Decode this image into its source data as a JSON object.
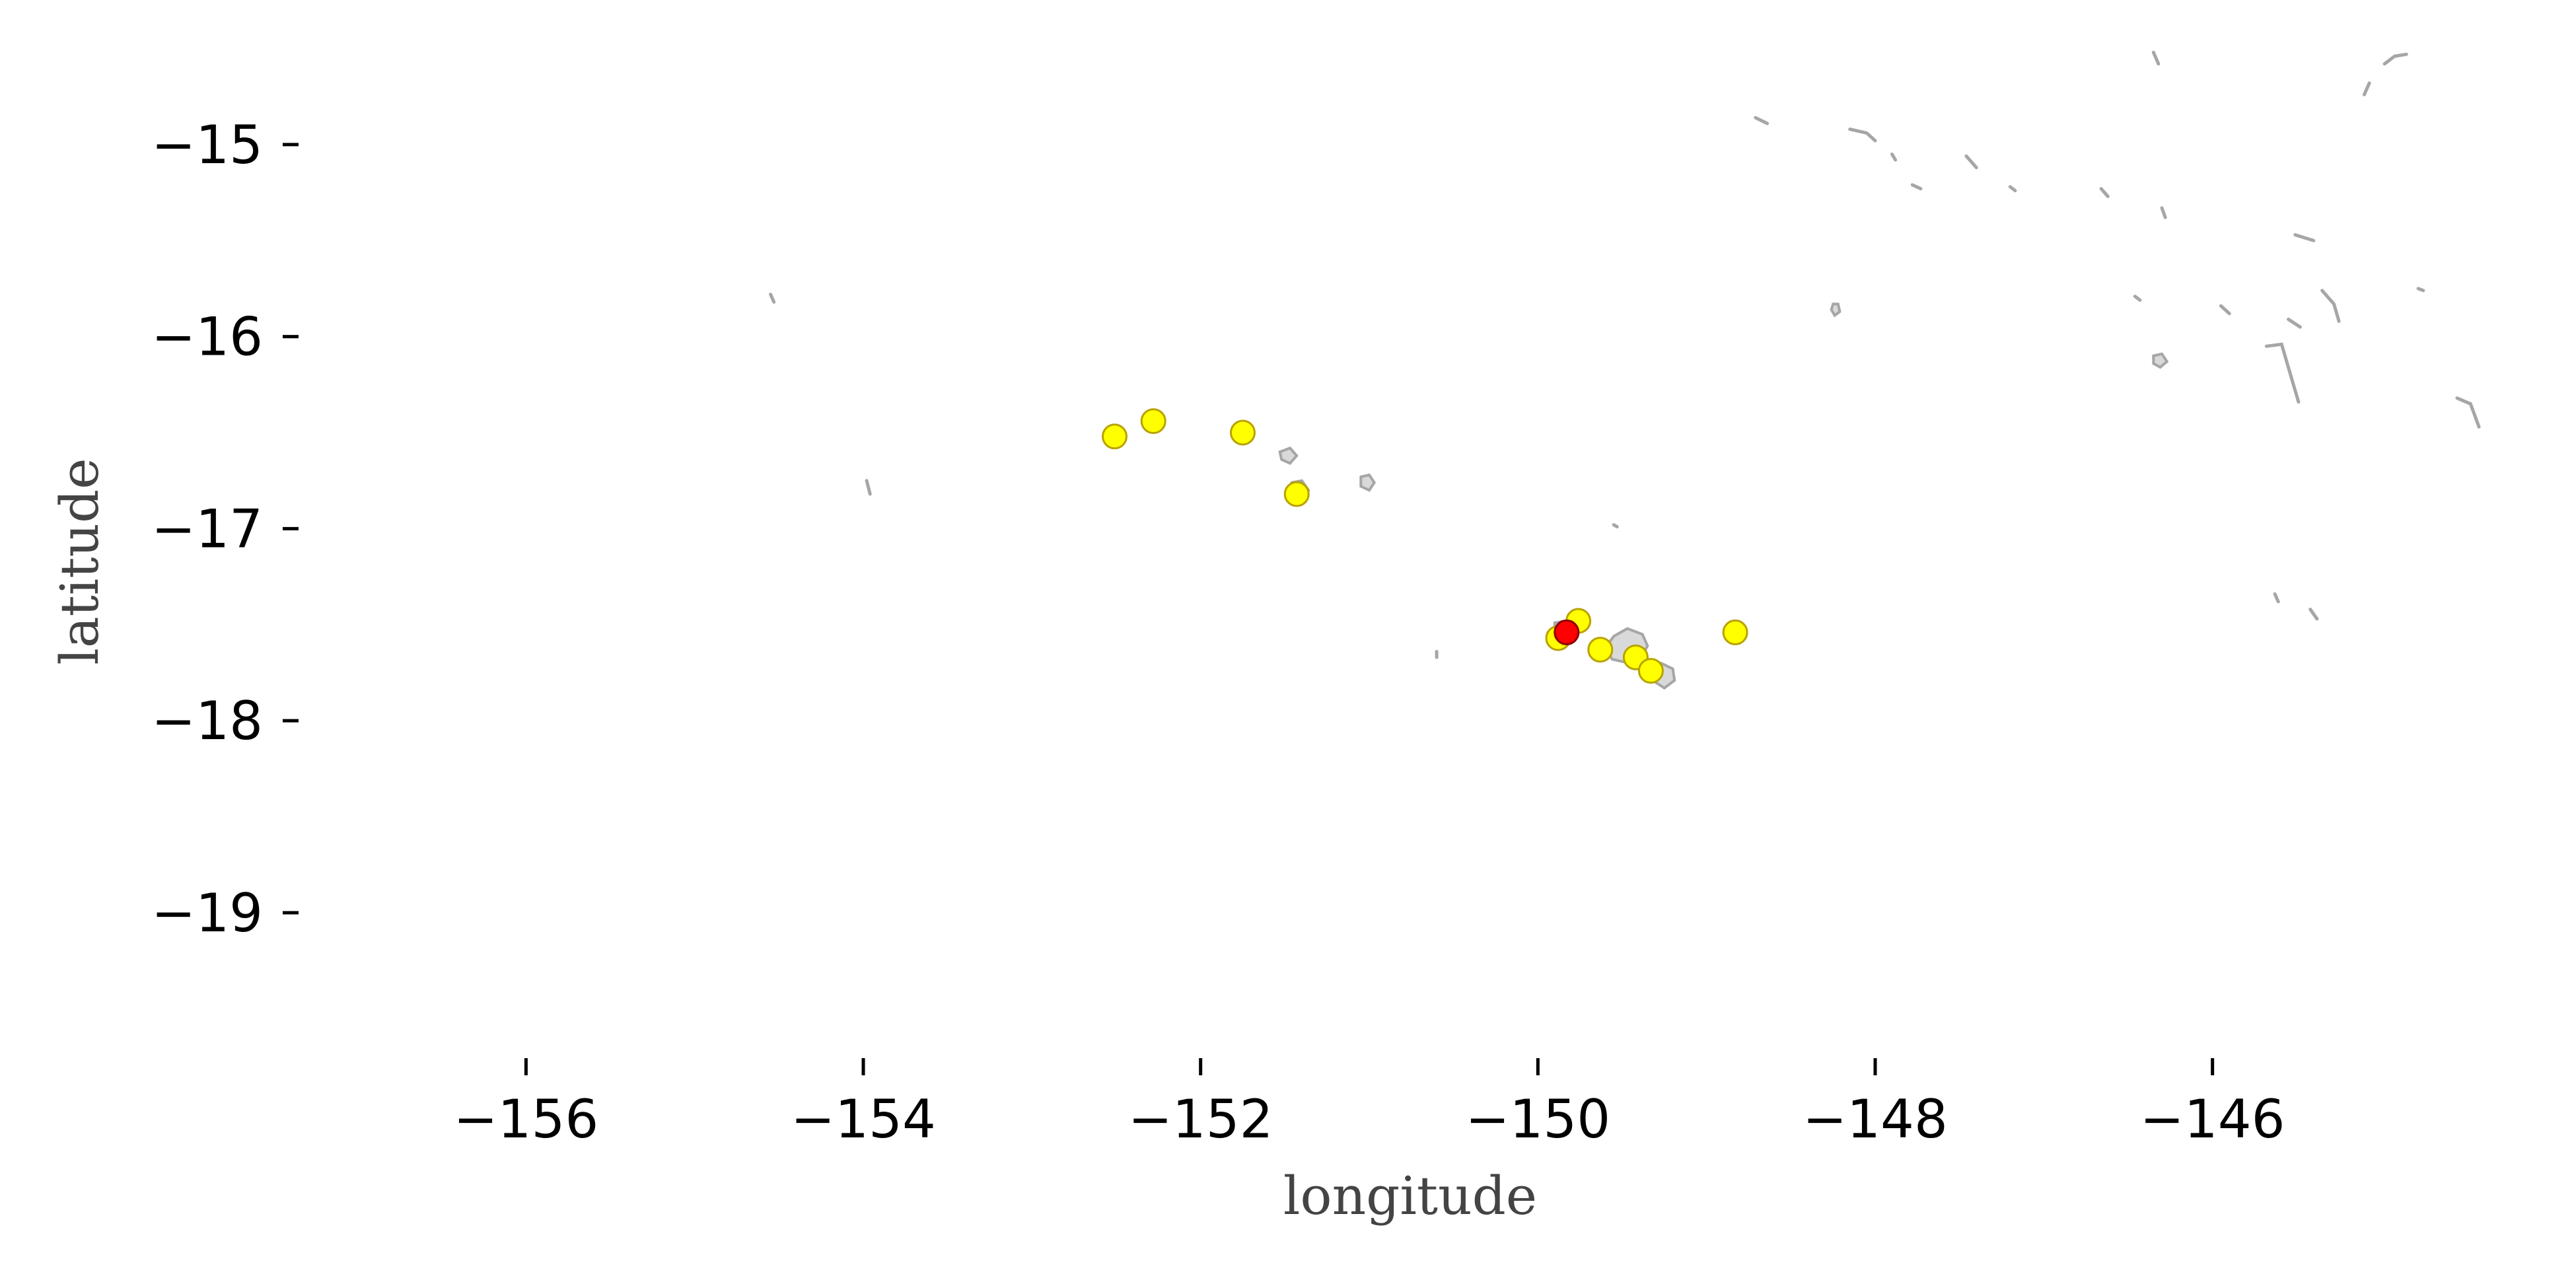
{
  "chart_data": {
    "type": "scatter",
    "title": "",
    "xlabel": "longitude",
    "ylabel": "latitude",
    "xlim": [
      -157.2,
      -144.15
    ],
    "ylim": [
      -19.75,
      -14.55
    ],
    "grid": false,
    "xticks": [
      -156,
      -154,
      -152,
      -150,
      -148,
      -146
    ],
    "yticks": [
      -15,
      -16,
      -17,
      -18,
      -19
    ],
    "xtick_labels": [
      "−156",
      "−154",
      "−152",
      "−150",
      "−148",
      "−146"
    ],
    "ytick_labels": [
      "−15",
      "−16",
      "−17",
      "−18",
      "−19"
    ],
    "colors": {
      "yellow_fill": "#ffff00",
      "yellow_edge": "#b8a200",
      "red_fill": "#ff0000",
      "red_edge": "#8b0000",
      "land_fill": "#d9d9d9",
      "land_edge": "#a6a6a6"
    },
    "series": [
      {
        "color": "yellow",
        "points": [
          {
            "x": -152.51,
            "y": -16.52
          },
          {
            "x": -152.28,
            "y": -16.44
          },
          {
            "x": -151.75,
            "y": -16.5
          },
          {
            "x": -151.43,
            "y": -16.82
          },
          {
            "x": -149.88,
            "y": -17.57
          },
          {
            "x": -149.76,
            "y": -17.48
          },
          {
            "x": -149.63,
            "y": -17.63
          },
          {
            "x": -149.42,
            "y": -17.67
          },
          {
            "x": -149.33,
            "y": -17.74
          },
          {
            "x": -148.83,
            "y": -17.54
          }
        ]
      },
      {
        "color": "red",
        "points": [
          {
            "x": -149.83,
            "y": -17.54
          }
        ]
      }
    ],
    "land": {
      "islands": [
        [
          [
            -149.55,
            -17.56
          ],
          [
            -149.47,
            -17.52
          ],
          [
            -149.38,
            -17.55
          ],
          [
            -149.35,
            -17.61
          ],
          [
            -149.38,
            -17.66
          ],
          [
            -149.46,
            -17.7
          ],
          [
            -149.56,
            -17.68
          ],
          [
            -149.6,
            -17.62
          ]
        ],
        [
          [
            -149.33,
            -17.72
          ],
          [
            -149.27,
            -17.7
          ],
          [
            -149.2,
            -17.73
          ],
          [
            -149.19,
            -17.79
          ],
          [
            -149.25,
            -17.83
          ],
          [
            -149.32,
            -17.79
          ]
        ],
        [
          [
            -149.9,
            -17.49
          ],
          [
            -149.83,
            -17.48
          ],
          [
            -149.8,
            -17.52
          ],
          [
            -149.85,
            -17.55
          ],
          [
            -149.9,
            -17.53
          ]
        ],
        [
          [
            -151.53,
            -16.6
          ],
          [
            -151.47,
            -16.58
          ],
          [
            -151.43,
            -16.62
          ],
          [
            -151.47,
            -16.66
          ],
          [
            -151.52,
            -16.64
          ]
        ],
        [
          [
            -151.46,
            -16.76
          ],
          [
            -151.4,
            -16.75
          ],
          [
            -151.36,
            -16.8
          ],
          [
            -151.4,
            -16.86
          ],
          [
            -151.46,
            -16.84
          ]
        ],
        [
          [
            -151.05,
            -16.73
          ],
          [
            -151.0,
            -16.72
          ],
          [
            -150.97,
            -16.76
          ],
          [
            -151.0,
            -16.8
          ],
          [
            -151.05,
            -16.78
          ]
        ],
        [
          [
            -146.35,
            -16.1
          ],
          [
            -146.3,
            -16.09
          ],
          [
            -146.27,
            -16.13
          ],
          [
            -146.31,
            -16.16
          ],
          [
            -146.35,
            -16.14
          ]
        ],
        [
          [
            -148.25,
            -15.83
          ],
          [
            -148.22,
            -15.83
          ],
          [
            -148.21,
            -15.87
          ],
          [
            -148.24,
            -15.89
          ],
          [
            -148.26,
            -15.86
          ]
        ]
      ],
      "reefs": [
        [
          [
            -154.55,
            -15.78
          ],
          [
            -154.53,
            -15.82
          ]
        ],
        [
          [
            -153.98,
            -16.75
          ],
          [
            -153.96,
            -16.82
          ]
        ],
        [
          [
            -150.6,
            -17.64
          ],
          [
            -150.6,
            -17.67
          ]
        ],
        [
          [
            -149.55,
            -16.98
          ],
          [
            -149.53,
            -16.99
          ]
        ],
        [
          [
            -148.71,
            -14.86
          ],
          [
            -148.64,
            -14.89
          ]
        ],
        [
          [
            -148.15,
            -14.92
          ],
          [
            -148.05,
            -14.94
          ],
          [
            -148.0,
            -14.98
          ]
        ],
        [
          [
            -147.9,
            -15.05
          ],
          [
            -147.88,
            -15.08
          ]
        ],
        [
          [
            -147.78,
            -15.21
          ],
          [
            -147.73,
            -15.23
          ]
        ],
        [
          [
            -147.46,
            -15.06
          ],
          [
            -147.4,
            -15.12
          ]
        ],
        [
          [
            -147.2,
            -15.22
          ],
          [
            -147.17,
            -15.24
          ]
        ],
        [
          [
            -146.66,
            -15.23
          ],
          [
            -146.62,
            -15.27
          ]
        ],
        [
          [
            -146.3,
            -15.33
          ],
          [
            -146.28,
            -15.38
          ]
        ],
        [
          [
            -145.51,
            -15.47
          ],
          [
            -145.4,
            -15.5
          ]
        ],
        [
          [
            -146.46,
            -15.79
          ],
          [
            -146.43,
            -15.81
          ]
        ],
        [
          [
            -145.95,
            -15.84
          ],
          [
            -145.9,
            -15.88
          ]
        ],
        [
          [
            -145.35,
            -15.76
          ],
          [
            -145.28,
            -15.83
          ],
          [
            -145.25,
            -15.92
          ]
        ],
        [
          [
            -145.55,
            -15.91
          ],
          [
            -145.48,
            -15.95
          ]
        ],
        [
          [
            -145.68,
            -16.05
          ],
          [
            -145.59,
            -16.04
          ],
          [
            -145.54,
            -16.19
          ],
          [
            -145.49,
            -16.34
          ]
        ],
        [
          [
            -144.78,
            -15.75
          ],
          [
            -144.75,
            -15.76
          ]
        ],
        [
          [
            -144.55,
            -16.32
          ],
          [
            -144.47,
            -16.35
          ],
          [
            -144.42,
            -16.47
          ]
        ],
        [
          [
            -145.63,
            -17.34
          ],
          [
            -145.61,
            -17.38
          ]
        ],
        [
          [
            -145.42,
            -17.42
          ],
          [
            -145.38,
            -17.47
          ]
        ],
        [
          [
            -146.35,
            -14.52
          ],
          [
            -146.32,
            -14.58
          ]
        ],
        [
          [
            -145.1,
            -14.74
          ],
          [
            -145.07,
            -14.68
          ]
        ],
        [
          [
            -144.98,
            -14.58
          ],
          [
            -144.92,
            -14.54
          ],
          [
            -144.85,
            -14.53
          ]
        ]
      ]
    }
  }
}
